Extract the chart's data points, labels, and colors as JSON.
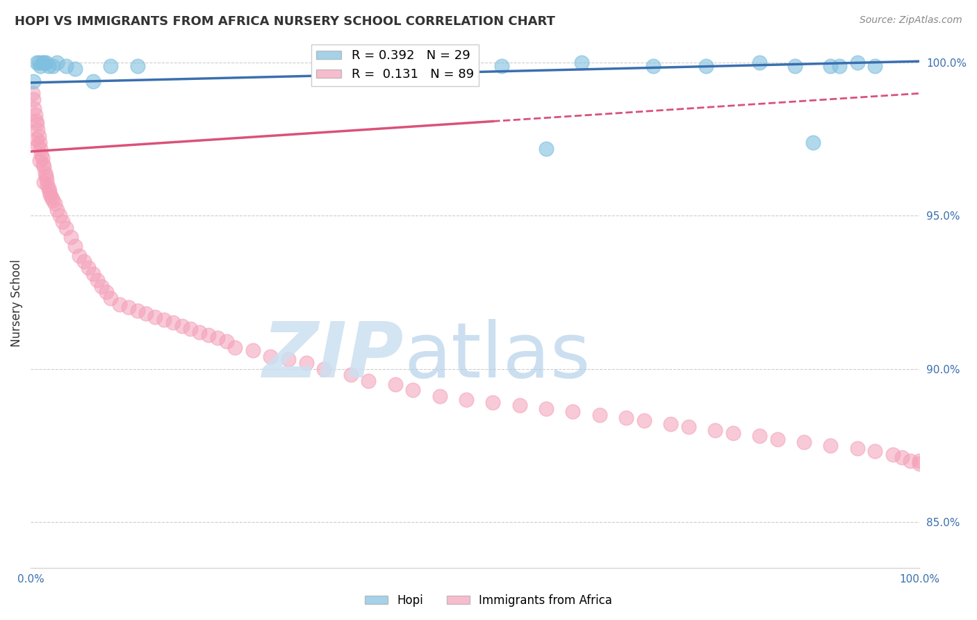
{
  "title": "HOPI VS IMMIGRANTS FROM AFRICA NURSERY SCHOOL CORRELATION CHART",
  "source": "Source: ZipAtlas.com",
  "ylabel": "Nursery School",
  "xlim": [
    0.0,
    1.0
  ],
  "ylim": [
    0.835,
    1.008
  ],
  "yticks": [
    0.85,
    0.9,
    0.95,
    1.0
  ],
  "ytick_labels": [
    "85.0%",
    "90.0%",
    "95.0%",
    "100.0%"
  ],
  "xticks": [
    0.0,
    0.1,
    0.2,
    0.3,
    0.4,
    0.5,
    0.6,
    0.7,
    0.8,
    0.9,
    1.0
  ],
  "xtick_labels": [
    "0.0%",
    "",
    "",
    "",
    "",
    "",
    "",
    "",
    "",
    "",
    "100.0%"
  ],
  "hopi_R": 0.392,
  "hopi_N": 29,
  "africa_R": 0.131,
  "africa_N": 89,
  "hopi_color": "#7fbfdf",
  "africa_color": "#f4a0b8",
  "hopi_line_color": "#3a6faf",
  "africa_line_color": "#d9527a",
  "background_color": "#ffffff",
  "grid_color": "#cccccc",
  "axis_label_color": "#3a6faf",
  "title_color": "#333333",
  "hopi_x": [
    0.003,
    0.007,
    0.009,
    0.011,
    0.013,
    0.015,
    0.017,
    0.02,
    0.025,
    0.03,
    0.04,
    0.05,
    0.07,
    0.09,
    0.12,
    0.38,
    0.43,
    0.53,
    0.58,
    0.62,
    0.7,
    0.76,
    0.82,
    0.86,
    0.88,
    0.9,
    0.91,
    0.93,
    0.95
  ],
  "hopi_y": [
    0.994,
    1.0,
    1.0,
    0.999,
    1.0,
    1.0,
    1.0,
    0.999,
    0.999,
    1.0,
    0.999,
    0.998,
    0.994,
    0.999,
    0.999,
    0.999,
    1.0,
    0.999,
    0.972,
    1.0,
    0.999,
    0.999,
    1.0,
    0.999,
    0.974,
    0.999,
    0.999,
    1.0,
    0.999
  ],
  "africa_x": [
    0.002,
    0.003,
    0.004,
    0.005,
    0.006,
    0.006,
    0.007,
    0.008,
    0.008,
    0.009,
    0.01,
    0.01,
    0.011,
    0.012,
    0.013,
    0.014,
    0.015,
    0.015,
    0.016,
    0.017,
    0.018,
    0.019,
    0.02,
    0.021,
    0.022,
    0.023,
    0.025,
    0.027,
    0.03,
    0.033,
    0.036,
    0.04,
    0.045,
    0.05,
    0.055,
    0.06,
    0.065,
    0.07,
    0.075,
    0.08,
    0.085,
    0.09,
    0.1,
    0.11,
    0.12,
    0.13,
    0.14,
    0.15,
    0.16,
    0.17,
    0.18,
    0.19,
    0.2,
    0.21,
    0.22,
    0.23,
    0.25,
    0.27,
    0.29,
    0.31,
    0.33,
    0.36,
    0.38,
    0.41,
    0.43,
    0.46,
    0.49,
    0.52,
    0.55,
    0.58,
    0.61,
    0.64,
    0.67,
    0.69,
    0.72,
    0.74,
    0.77,
    0.79,
    0.82,
    0.84,
    0.87,
    0.9,
    0.93,
    0.95,
    0.97,
    0.98,
    0.99,
    1.0,
    1.0
  ],
  "africa_y": [
    0.99,
    0.988,
    0.985,
    0.983,
    0.981,
    0.975,
    0.98,
    0.978,
    0.973,
    0.976,
    0.974,
    0.968,
    0.972,
    0.97,
    0.969,
    0.967,
    0.966,
    0.961,
    0.964,
    0.963,
    0.962,
    0.96,
    0.959,
    0.958,
    0.957,
    0.956,
    0.955,
    0.954,
    0.952,
    0.95,
    0.948,
    0.946,
    0.943,
    0.94,
    0.937,
    0.935,
    0.933,
    0.931,
    0.929,
    0.927,
    0.925,
    0.923,
    0.921,
    0.92,
    0.919,
    0.918,
    0.917,
    0.916,
    0.915,
    0.914,
    0.913,
    0.912,
    0.911,
    0.91,
    0.909,
    0.907,
    0.906,
    0.904,
    0.903,
    0.902,
    0.9,
    0.898,
    0.896,
    0.895,
    0.893,
    0.891,
    0.89,
    0.889,
    0.888,
    0.887,
    0.886,
    0.885,
    0.884,
    0.883,
    0.882,
    0.881,
    0.88,
    0.879,
    0.878,
    0.877,
    0.876,
    0.875,
    0.874,
    0.873,
    0.872,
    0.871,
    0.87,
    0.87,
    0.869
  ],
  "hopi_line_x0": 0.0,
  "hopi_line_x1": 1.0,
  "hopi_line_y0": 0.9935,
  "hopi_line_y1": 1.0005,
  "africa_line_x0": 0.0,
  "africa_line_solid_x1": 0.52,
  "africa_line_x1": 1.0,
  "africa_line_y0": 0.971,
  "africa_line_y1": 0.99,
  "watermark_zip_color": "#cce0f0",
  "watermark_atlas_color": "#b0cfe8"
}
